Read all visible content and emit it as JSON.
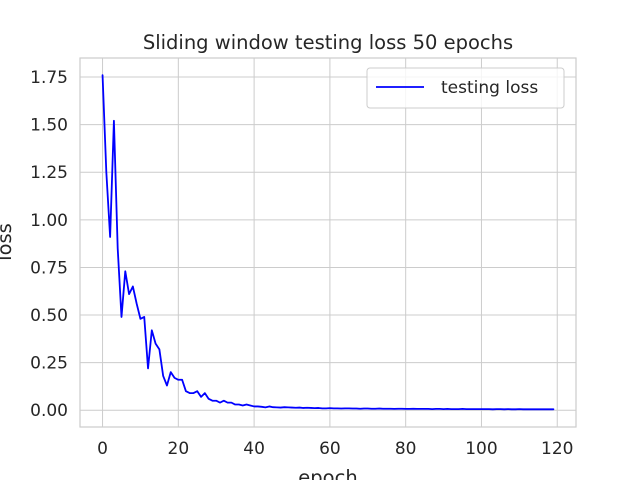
{
  "chart_data": {
    "type": "line",
    "title": "Sliding window testing loss 50 epochs",
    "xlabel": "epoch",
    "ylabel": "loss",
    "xlim": [
      -5.95,
      124.95
    ],
    "ylim": [
      -0.088,
      1.85
    ],
    "xticks": [
      0,
      20,
      40,
      60,
      80,
      100,
      120
    ],
    "yticks": [
      0.0,
      0.25,
      0.5,
      0.75,
      1.0,
      1.25,
      1.5,
      1.75
    ],
    "ytick_labels": [
      "0.00",
      "0.25",
      "0.50",
      "0.75",
      "1.00",
      "1.25",
      "1.50",
      "1.75"
    ],
    "xtick_labels": [
      "0",
      "20",
      "40",
      "60",
      "80",
      "100",
      "120"
    ],
    "grid": true,
    "legend_position": "top-right",
    "series": [
      {
        "name": "testing loss",
        "color": "#0000ff",
        "x": [
          0,
          1,
          2,
          3,
          4,
          5,
          6,
          7,
          8,
          9,
          10,
          11,
          12,
          13,
          14,
          15,
          16,
          17,
          18,
          19,
          20,
          21,
          22,
          23,
          24,
          25,
          26,
          27,
          28,
          29,
          30,
          31,
          32,
          33,
          34,
          35,
          36,
          37,
          38,
          39,
          40,
          41,
          42,
          43,
          44,
          45,
          46,
          47,
          48,
          49,
          50,
          51,
          52,
          53,
          54,
          55,
          56,
          57,
          58,
          59,
          60,
          61,
          62,
          63,
          64,
          65,
          66,
          67,
          68,
          69,
          70,
          71,
          72,
          73,
          74,
          75,
          76,
          77,
          78,
          79,
          80,
          81,
          82,
          83,
          84,
          85,
          86,
          87,
          88,
          89,
          90,
          91,
          92,
          93,
          94,
          95,
          96,
          97,
          98,
          99,
          100,
          101,
          102,
          103,
          104,
          105,
          106,
          107,
          108,
          109,
          110,
          111,
          112,
          113,
          114,
          115,
          116,
          117,
          118,
          119
        ],
        "values": [
          1.76,
          1.25,
          0.91,
          1.52,
          0.85,
          0.49,
          0.73,
          0.61,
          0.65,
          0.56,
          0.48,
          0.49,
          0.22,
          0.42,
          0.35,
          0.32,
          0.18,
          0.13,
          0.2,
          0.17,
          0.16,
          0.16,
          0.1,
          0.09,
          0.09,
          0.1,
          0.07,
          0.09,
          0.06,
          0.05,
          0.05,
          0.04,
          0.05,
          0.04,
          0.04,
          0.03,
          0.03,
          0.025,
          0.03,
          0.025,
          0.02,
          0.02,
          0.018,
          0.015,
          0.02,
          0.016,
          0.015,
          0.014,
          0.016,
          0.015,
          0.014,
          0.013,
          0.014,
          0.012,
          0.013,
          0.012,
          0.011,
          0.012,
          0.01,
          0.01,
          0.011,
          0.01,
          0.01,
          0.009,
          0.01,
          0.01,
          0.009,
          0.009,
          0.008,
          0.009,
          0.009,
          0.008,
          0.008,
          0.009,
          0.008,
          0.008,
          0.008,
          0.007,
          0.008,
          0.008,
          0.007,
          0.007,
          0.008,
          0.007,
          0.007,
          0.007,
          0.007,
          0.006,
          0.007,
          0.007,
          0.006,
          0.007,
          0.006,
          0.006,
          0.006,
          0.007,
          0.006,
          0.006,
          0.006,
          0.006,
          0.006,
          0.006,
          0.006,
          0.005,
          0.006,
          0.006,
          0.005,
          0.006,
          0.005,
          0.005,
          0.006,
          0.005,
          0.005,
          0.005,
          0.005,
          0.005,
          0.005,
          0.005,
          0.005,
          0.005
        ]
      }
    ]
  }
}
